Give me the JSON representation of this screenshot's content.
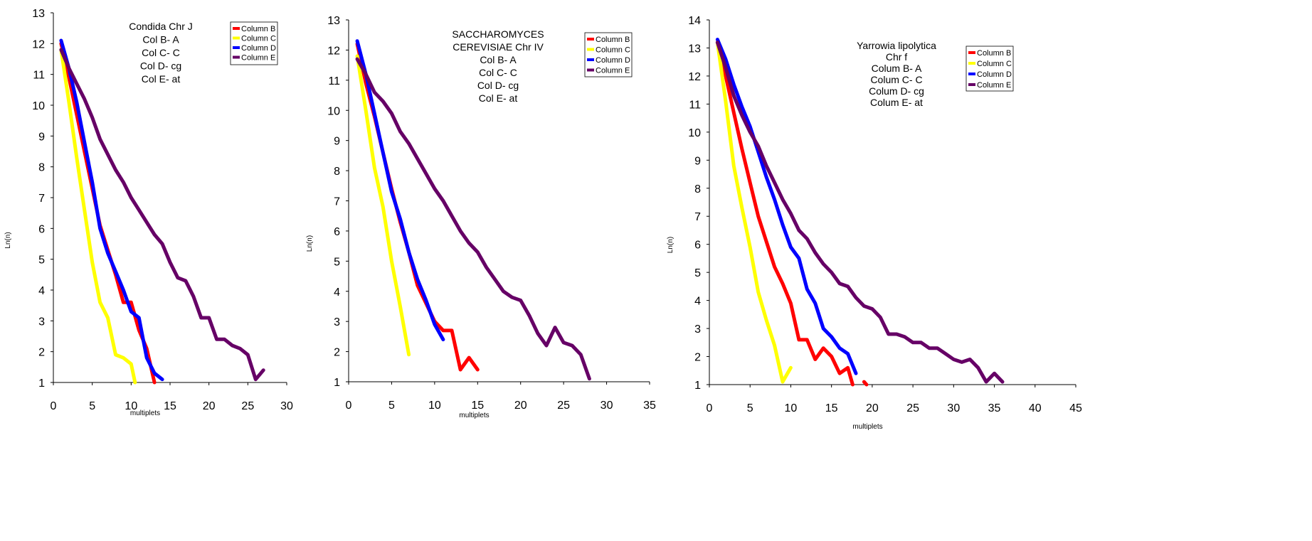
{
  "chart_data": [
    {
      "type": "line",
      "xlabel": "multiplets",
      "ylabel": "Ln(n)",
      "xlim": [
        0,
        30
      ],
      "ylim": [
        1,
        13
      ],
      "xticks": [
        0,
        5,
        10,
        15,
        20,
        25,
        30
      ],
      "yticks": [
        1,
        2,
        3,
        4,
        5,
        6,
        7,
        8,
        9,
        10,
        11,
        12,
        13
      ],
      "title_lines": [
        "Condida Chr J",
        "Col B- A",
        "Col C- C",
        "Col D- cg",
        "Col E- at"
      ],
      "series": [
        {
          "name": "Column B",
          "color": "#ff0000",
          "points": [
            [
              1,
              12.0
            ],
            [
              2,
              10.9
            ],
            [
              3,
              9.7
            ],
            [
              4,
              8.5
            ],
            [
              5,
              7.3
            ],
            [
              6,
              6.1
            ],
            [
              7,
              5.3
            ],
            [
              8,
              4.5
            ],
            [
              9,
              3.6
            ],
            [
              10,
              3.6
            ],
            [
              11,
              2.7
            ],
            [
              12,
              2.1
            ],
            [
              13,
              1.0
            ]
          ]
        },
        {
          "name": "Column C",
          "color": "#ffff00",
          "points": [
            [
              1,
              11.8
            ],
            [
              2,
              10.1
            ],
            [
              3,
              8.3
            ],
            [
              4,
              6.6
            ],
            [
              5,
              4.9
            ],
            [
              6,
              3.6
            ],
            [
              7,
              3.1
            ],
            [
              8,
              1.9
            ],
            [
              9,
              1.8
            ],
            [
              10,
              1.6
            ],
            [
              10.5,
              1.0
            ]
          ]
        },
        {
          "name": "Column D",
          "color": "#0000ff",
          "points": [
            [
              1,
              12.1
            ],
            [
              2,
              11.2
            ],
            [
              3,
              10.1
            ],
            [
              4,
              8.8
            ],
            [
              5,
              7.5
            ],
            [
              6,
              6.0
            ],
            [
              7,
              5.2
            ],
            [
              8,
              4.6
            ],
            [
              9,
              4.0
            ],
            [
              10,
              3.3
            ],
            [
              11,
              3.1
            ],
            [
              12,
              1.8
            ],
            [
              13,
              1.3
            ],
            [
              14,
              1.1
            ]
          ]
        },
        {
          "name": "Column E",
          "color": "#660066",
          "points": [
            [
              1,
              11.8
            ],
            [
              2,
              11.2
            ],
            [
              3,
              10.7
            ],
            [
              4,
              10.2
            ],
            [
              5,
              9.6
            ],
            [
              6,
              8.9
            ],
            [
              7,
              8.4
            ],
            [
              8,
              7.9
            ],
            [
              9,
              7.5
            ],
            [
              10,
              7.0
            ],
            [
              11,
              6.6
            ],
            [
              12,
              6.2
            ],
            [
              13,
              5.8
            ],
            [
              14,
              5.5
            ],
            [
              15,
              4.9
            ],
            [
              16,
              4.4
            ],
            [
              17,
              4.3
            ],
            [
              18,
              3.8
            ],
            [
              19,
              3.1
            ],
            [
              20,
              3.1
            ],
            [
              21,
              2.4
            ],
            [
              22,
              2.4
            ],
            [
              23,
              2.2
            ],
            [
              24,
              2.1
            ],
            [
              25,
              1.9
            ],
            [
              26,
              1.1
            ],
            [
              27,
              1.4
            ]
          ]
        }
      ]
    },
    {
      "type": "line",
      "xlabel": "multiplets",
      "ylabel": "Ln(n)",
      "xlim": [
        0,
        35
      ],
      "ylim": [
        1,
        13
      ],
      "xticks": [
        0,
        5,
        10,
        15,
        20,
        25,
        30,
        35
      ],
      "yticks": [
        1,
        2,
        3,
        4,
        5,
        6,
        7,
        8,
        9,
        10,
        11,
        12,
        13
      ],
      "title_lines": [
        "SACCHAROMYCES",
        "CEREVISIAE Chr IV",
        "Col B- A",
        "Col C- C",
        "Col D- cg",
        "Col E- at"
      ],
      "series": [
        {
          "name": "Column B",
          "color": "#ff0000",
          "points": [
            [
              1,
              12.2
            ],
            [
              2,
              10.9
            ],
            [
              3,
              9.8
            ],
            [
              4,
              8.6
            ],
            [
              5,
              7.4
            ],
            [
              6,
              6.3
            ],
            [
              7,
              5.3
            ],
            [
              8,
              4.2
            ],
            [
              9,
              3.6
            ],
            [
              10,
              3.0
            ],
            [
              11,
              2.7
            ],
            [
              12,
              2.7
            ],
            [
              13,
              1.4
            ],
            [
              14,
              1.8
            ],
            [
              15,
              1.4
            ]
          ]
        },
        {
          "name": "Column C",
          "color": "#ffff00",
          "points": [
            [
              1,
              11.8
            ],
            [
              2,
              10.0
            ],
            [
              3,
              8.1
            ],
            [
              4,
              6.8
            ],
            [
              5,
              5.0
            ],
            [
              6,
              3.5
            ],
            [
              7,
              1.9
            ]
          ]
        },
        {
          "name": "Column D",
          "color": "#0000ff",
          "points": [
            [
              1,
              12.3
            ],
            [
              2,
              11.2
            ],
            [
              3,
              9.9
            ],
            [
              4,
              8.6
            ],
            [
              5,
              7.3
            ],
            [
              6,
              6.4
            ],
            [
              7,
              5.3
            ],
            [
              8,
              4.4
            ],
            [
              9,
              3.7
            ],
            [
              10,
              2.9
            ],
            [
              11,
              2.4
            ]
          ]
        },
        {
          "name": "Column E",
          "color": "#660066",
          "points": [
            [
              1,
              11.7
            ],
            [
              2,
              11.2
            ],
            [
              3,
              10.6
            ],
            [
              4,
              10.3
            ],
            [
              5,
              9.9
            ],
            [
              6,
              9.3
            ],
            [
              7,
              8.9
            ],
            [
              8,
              8.4
            ],
            [
              9,
              7.9
            ],
            [
              10,
              7.4
            ],
            [
              11,
              7.0
            ],
            [
              12,
              6.5
            ],
            [
              13,
              6.0
            ],
            [
              14,
              5.6
            ],
            [
              15,
              5.3
            ],
            [
              16,
              4.8
            ],
            [
              17,
              4.4
            ],
            [
              18,
              4.0
            ],
            [
              19,
              3.8
            ],
            [
              20,
              3.7
            ],
            [
              21,
              3.2
            ],
            [
              22,
              2.6
            ],
            [
              23,
              2.2
            ],
            [
              24,
              2.8
            ],
            [
              25,
              2.3
            ],
            [
              26,
              2.2
            ],
            [
              27,
              1.9
            ],
            [
              28,
              1.1
            ]
          ]
        }
      ]
    },
    {
      "type": "line",
      "xlabel": "multiplets",
      "ylabel": "Ln(n)",
      "xlim": [
        0,
        45
      ],
      "ylim": [
        1,
        14
      ],
      "xticks": [
        0,
        5,
        10,
        15,
        20,
        25,
        30,
        35,
        40,
        45
      ],
      "yticks": [
        1,
        2,
        3,
        4,
        5,
        6,
        7,
        8,
        9,
        10,
        11,
        12,
        13,
        14
      ],
      "title_lines": [
        "Yarrowia lipolytica",
        "Chr f",
        "Colum B- A",
        "Colum C- C",
        "Colum D- cg",
        "Colum E- at"
      ],
      "series": [
        {
          "name": "Column B",
          "color": "#ff0000",
          "points": [
            [
              1,
              13.2
            ],
            [
              2,
              12.0
            ],
            [
              3,
              10.7
            ],
            [
              4,
              9.4
            ],
            [
              5,
              8.2
            ],
            [
              6,
              7.0
            ],
            [
              7,
              6.1
            ],
            [
              8,
              5.2
            ],
            [
              9,
              4.6
            ],
            [
              10,
              3.9
            ],
            [
              11,
              2.6
            ],
            [
              12,
              2.6
            ],
            [
              13,
              1.9
            ],
            [
              14,
              2.3
            ],
            [
              15,
              2.0
            ],
            [
              16,
              1.4
            ],
            [
              17,
              1.6
            ],
            [
              17.6,
              1.0
            ]
          ]
        },
        {
          "name": "Column B dot",
          "color": "#ff0000",
          "points": [
            [
              19,
              1.1
            ],
            [
              19.3,
              1.0
            ]
          ]
        },
        {
          "name": "Column C",
          "color": "#ffff00",
          "points": [
            [
              1,
              13.2
            ],
            [
              2,
              11.1
            ],
            [
              3,
              8.8
            ],
            [
              4,
              7.3
            ],
            [
              5,
              5.9
            ],
            [
              6,
              4.3
            ],
            [
              7,
              3.3
            ],
            [
              8,
              2.4
            ],
            [
              9,
              1.1
            ],
            [
              10,
              1.6
            ]
          ]
        },
        {
          "name": "Column D",
          "color": "#0000ff",
          "points": [
            [
              1,
              13.3
            ],
            [
              2,
              12.6
            ],
            [
              3,
              11.7
            ],
            [
              4,
              10.9
            ],
            [
              5,
              10.2
            ],
            [
              6,
              9.3
            ],
            [
              7,
              8.4
            ],
            [
              8,
              7.6
            ],
            [
              9,
              6.7
            ],
            [
              10,
              5.9
            ],
            [
              11,
              5.5
            ],
            [
              12,
              4.4
            ],
            [
              13,
              3.9
            ],
            [
              14,
              3.0
            ],
            [
              15,
              2.7
            ],
            [
              16,
              2.3
            ],
            [
              17,
              2.1
            ],
            [
              18,
              1.4
            ]
          ]
        },
        {
          "name": "Column E",
          "color": "#660066",
          "points": [
            [
              1,
              13.2
            ],
            [
              2,
              12.3
            ],
            [
              3,
              11.3
            ],
            [
              4,
              10.6
            ],
            [
              5,
              10.0
            ],
            [
              6,
              9.5
            ],
            [
              7,
              8.8
            ],
            [
              8,
              8.2
            ],
            [
              9,
              7.6
            ],
            [
              10,
              7.1
            ],
            [
              11,
              6.5
            ],
            [
              12,
              6.2
            ],
            [
              13,
              5.7
            ],
            [
              14,
              5.3
            ],
            [
              15,
              5.0
            ],
            [
              16,
              4.6
            ],
            [
              17,
              4.5
            ],
            [
              18,
              4.1
            ],
            [
              19,
              3.8
            ],
            [
              20,
              3.7
            ],
            [
              21,
              3.4
            ],
            [
              22,
              2.8
            ],
            [
              23,
              2.8
            ],
            [
              24,
              2.7
            ],
            [
              25,
              2.5
            ],
            [
              26,
              2.5
            ],
            [
              27,
              2.3
            ],
            [
              28,
              2.3
            ],
            [
              29,
              2.1
            ],
            [
              30,
              1.9
            ],
            [
              31,
              1.8
            ],
            [
              32,
              1.9
            ],
            [
              33,
              1.6
            ],
            [
              34,
              1.1
            ],
            [
              35,
              1.4
            ],
            [
              36,
              1.1
            ]
          ]
        }
      ],
      "legend_entries": [
        "Column B",
        "Column C",
        "Column D",
        "Column E"
      ]
    }
  ],
  "legend_labels": {
    "chart1": [
      "Column B",
      "Column C",
      "Column D",
      "Column E"
    ],
    "chart2": [
      "Column B",
      "Column C",
      "Column D",
      "Column E"
    ],
    "chart3": [
      "Column B",
      "Column C",
      "Column D",
      "Column E"
    ]
  }
}
